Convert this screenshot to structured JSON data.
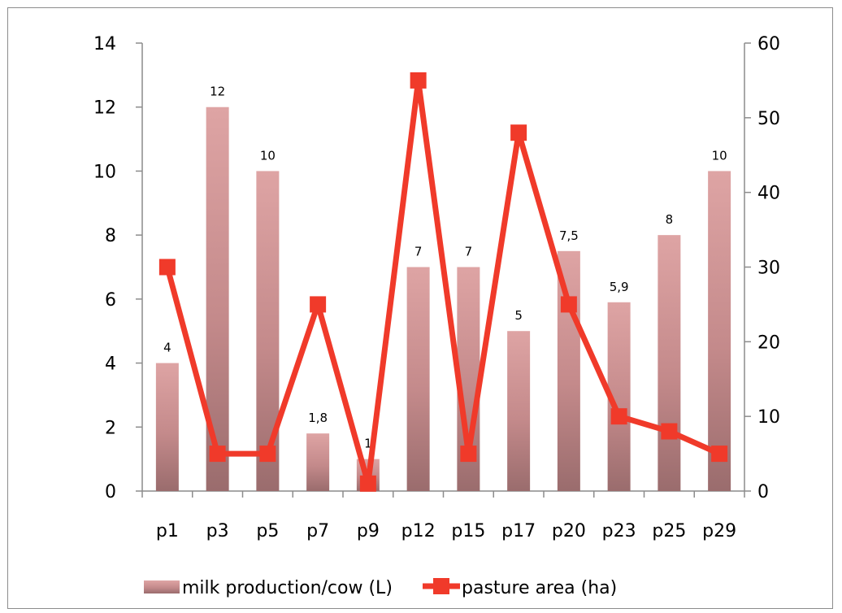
{
  "chart_data": {
    "type": "bar+line",
    "title": "",
    "categories": [
      "p1",
      "p3",
      "p5",
      "p7",
      "p9",
      "p12",
      "p15",
      "p17",
      "p20",
      "p23",
      "p25",
      "p29"
    ],
    "series": [
      {
        "name": "milk production/cow (L)",
        "type": "bar",
        "axis": "left",
        "values": [
          4,
          12,
          10,
          1.8,
          1,
          7,
          7,
          5,
          7.5,
          5.9,
          8,
          10
        ],
        "labels": [
          "4",
          "12",
          "10",
          "1,8",
          "1",
          "7",
          "7",
          "5",
          "7,5",
          "5,9",
          "8",
          "10"
        ],
        "color": "#d79a9a"
      },
      {
        "name": "pasture area (ha)",
        "type": "line",
        "axis": "right",
        "values": [
          30,
          5,
          5,
          25,
          1,
          55,
          5,
          48,
          25,
          10,
          8,
          5
        ],
        "color": "#f03a2a"
      }
    ],
    "y_left": {
      "min": 0,
      "max": 14,
      "ticks": [
        "0",
        "2",
        "4",
        "6",
        "8",
        "10",
        "12",
        "14"
      ]
    },
    "y_right": {
      "min": 0,
      "max": 60,
      "ticks": [
        "0",
        "10",
        "20",
        "30",
        "40",
        "50",
        "60"
      ]
    },
    "grid": false,
    "legend_position": "bottom"
  }
}
